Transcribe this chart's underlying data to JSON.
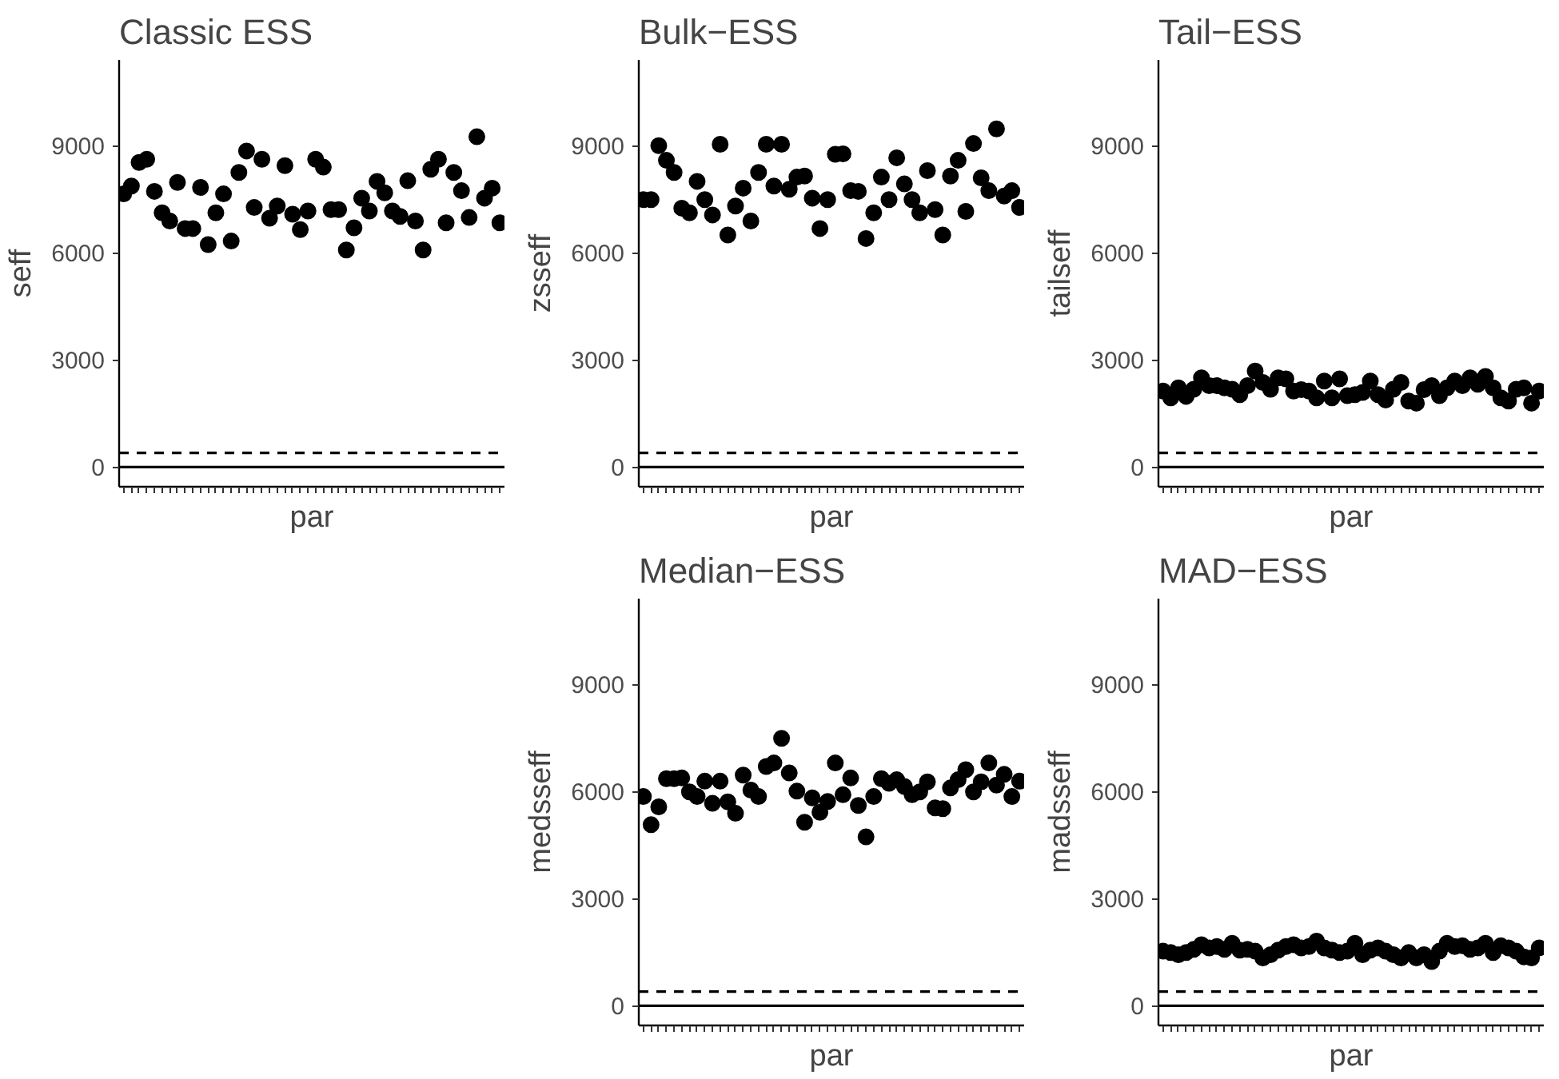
{
  "chart_data": [
    {
      "type": "scatter",
      "title": "Classic ESS",
      "xlabel": "par",
      "ylabel": "seff",
      "color": "#000000",
      "marker": "circle",
      "grid": false,
      "categories": [
        null,
        null,
        null,
        null,
        null,
        null,
        null,
        null,
        null,
        null,
        null,
        null,
        null,
        null,
        null,
        null,
        null,
        null,
        null,
        null,
        null,
        null,
        null,
        null,
        null,
        null,
        null,
        null,
        null,
        null,
        null,
        null,
        null,
        null,
        null,
        null,
        null,
        null,
        null,
        null,
        null,
        null,
        null,
        null,
        null,
        null,
        null,
        null,
        null,
        null
      ],
      "values": [
        7650,
        7870,
        8530,
        8620,
        7720,
        7120,
        6890,
        7970,
        6680,
        6680,
        7830,
        6230,
        7120,
        7650,
        6330,
        8250,
        8850,
        7270,
        8620,
        6970,
        7310,
        8440,
        7080,
        6650,
        7170,
        8620,
        8400,
        7210,
        7210,
        6080,
        6700,
        7530,
        7170,
        8000,
        7680,
        7170,
        7020,
        8020,
        6890,
        6080,
        8340,
        8620,
        6840,
        8250,
        7740,
        6990,
        9250,
        7530,
        7810,
        6840
      ],
      "ylim": [
        -550,
        11400
      ],
      "yticks": [
        0,
        3000,
        6000,
        9000
      ],
      "ref_lines": [
        {
          "axis": "y",
          "value": 0,
          "line_style": "solid"
        },
        {
          "axis": "y",
          "value": 400,
          "line_style": "dashed"
        }
      ]
    },
    {
      "type": "scatter",
      "title": "Bulk−ESS",
      "xlabel": "par",
      "ylabel": "zsseff",
      "color": "#000000",
      "marker": "circle",
      "grid": false,
      "categories": [
        null,
        null,
        null,
        null,
        null,
        null,
        null,
        null,
        null,
        null,
        null,
        null,
        null,
        null,
        null,
        null,
        null,
        null,
        null,
        null,
        null,
        null,
        null,
        null,
        null,
        null,
        null,
        null,
        null,
        null,
        null,
        null,
        null,
        null,
        null,
        null,
        null,
        null,
        null,
        null,
        null,
        null,
        null,
        null,
        null,
        null,
        null,
        null,
        null,
        null
      ],
      "values": [
        7490,
        7490,
        9000,
        8590,
        8250,
        7250,
        7120,
        8000,
        7490,
        7060,
        9040,
        6500,
        7310,
        7810,
        6890,
        8250,
        9040,
        7870,
        9040,
        7780,
        8120,
        8150,
        7530,
        6680,
        7490,
        8760,
        8770,
        7740,
        7720,
        6400,
        7120,
        8120,
        7490,
        8660,
        7930,
        7490,
        7120,
        8300,
        7210,
        6500,
        8150,
        8590,
        7160,
        9060,
        8100,
        7740,
        9470,
        7590,
        7740,
        7270
      ],
      "ylim": [
        -550,
        11400
      ],
      "yticks": [
        0,
        3000,
        6000,
        9000
      ],
      "ref_lines": [
        {
          "axis": "y",
          "value": 0,
          "line_style": "solid"
        },
        {
          "axis": "y",
          "value": 400,
          "line_style": "dashed"
        }
      ]
    },
    {
      "type": "scatter",
      "title": "Tail−ESS",
      "xlabel": "par",
      "ylabel": "tailseff",
      "color": "#000000",
      "marker": "circle",
      "grid": false,
      "categories": [
        null,
        null,
        null,
        null,
        null,
        null,
        null,
        null,
        null,
        null,
        null,
        null,
        null,
        null,
        null,
        null,
        null,
        null,
        null,
        null,
        null,
        null,
        null,
        null,
        null,
        null,
        null,
        null,
        null,
        null,
        null,
        null,
        null,
        null,
        null,
        null,
        null,
        null,
        null,
        null,
        null,
        null,
        null,
        null,
        null,
        null,
        null,
        null,
        null,
        null
      ],
      "values": [
        2130,
        1940,
        2220,
        1980,
        2180,
        2500,
        2280,
        2280,
        2220,
        2180,
        2030,
        2280,
        2690,
        2370,
        2180,
        2500,
        2470,
        2130,
        2170,
        2130,
        1940,
        2410,
        1940,
        2470,
        2000,
        2030,
        2090,
        2410,
        2030,
        1880,
        2180,
        2370,
        1850,
        1790,
        2170,
        2280,
        2000,
        2220,
        2410,
        2280,
        2500,
        2320,
        2540,
        2220,
        1940,
        1850,
        2180,
        2220,
        1790,
        2130
      ],
      "ylim": [
        -550,
        11400
      ],
      "yticks": [
        0,
        3000,
        6000,
        9000
      ],
      "ref_lines": [
        {
          "axis": "y",
          "value": 0,
          "line_style": "solid"
        },
        {
          "axis": "y",
          "value": 400,
          "line_style": "dashed"
        }
      ]
    },
    {
      "type": "scatter",
      "title": "Median−ESS",
      "xlabel": "par",
      "ylabel": "medsseff",
      "color": "#000000",
      "marker": "circle",
      "grid": false,
      "categories": [
        null,
        null,
        null,
        null,
        null,
        null,
        null,
        null,
        null,
        null,
        null,
        null,
        null,
        null,
        null,
        null,
        null,
        null,
        null,
        null,
        null,
        null,
        null,
        null,
        null,
        null,
        null,
        null,
        null,
        null,
        null,
        null,
        null,
        null,
        null,
        null,
        null,
        null,
        null,
        null,
        null,
        null,
        null,
        null,
        null,
        null,
        null,
        null,
        null,
        null
      ],
      "values": [
        5860,
        5070,
        5570,
        6360,
        6360,
        6380,
        5990,
        5860,
        6290,
        5670,
        6290,
        5710,
        5390,
        6460,
        6040,
        5860,
        6700,
        6800,
        7490,
        6520,
        6010,
        5140,
        5820,
        5420,
        5720,
        6800,
        5910,
        6380,
        5610,
        4730,
        5860,
        6360,
        6230,
        6330,
        6140,
        5910,
        5990,
        6270,
        5540,
        5520,
        6100,
        6330,
        6610,
        5990,
        6270,
        6800,
        6180,
        6480,
        5860,
        6290
      ],
      "ylim": [
        -550,
        11400
      ],
      "yticks": [
        0,
        3000,
        6000,
        9000
      ],
      "ref_lines": [
        {
          "axis": "y",
          "value": 0,
          "line_style": "solid"
        },
        {
          "axis": "y",
          "value": 400,
          "line_style": "dashed"
        }
      ]
    },
    {
      "type": "scatter",
      "title": "MAD−ESS",
      "xlabel": "par",
      "ylabel": "madsseff",
      "color": "#000000",
      "marker": "circle",
      "grid": false,
      "categories": [
        null,
        null,
        null,
        null,
        null,
        null,
        null,
        null,
        null,
        null,
        null,
        null,
        null,
        null,
        null,
        null,
        null,
        null,
        null,
        null,
        null,
        null,
        null,
        null,
        null,
        null,
        null,
        null,
        null,
        null,
        null,
        null,
        null,
        null,
        null,
        null,
        null,
        null,
        null,
        null,
        null,
        null,
        null,
        null,
        null,
        null,
        null,
        null,
        null,
        null
      ],
      "values": [
        1530,
        1490,
        1430,
        1490,
        1580,
        1710,
        1620,
        1660,
        1580,
        1750,
        1560,
        1580,
        1530,
        1340,
        1430,
        1560,
        1660,
        1710,
        1620,
        1660,
        1810,
        1620,
        1560,
        1490,
        1530,
        1750,
        1430,
        1560,
        1620,
        1530,
        1430,
        1340,
        1490,
        1340,
        1430,
        1240,
        1530,
        1750,
        1660,
        1680,
        1580,
        1620,
        1750,
        1490,
        1680,
        1620,
        1530,
        1370,
        1340,
        1620
      ],
      "ylim": [
        -550,
        11400
      ],
      "yticks": [
        0,
        3000,
        6000,
        9000
      ],
      "ref_lines": [
        {
          "axis": "y",
          "value": 0,
          "line_style": "solid"
        },
        {
          "axis": "y",
          "value": 400,
          "line_style": "dashed"
        }
      ]
    }
  ]
}
